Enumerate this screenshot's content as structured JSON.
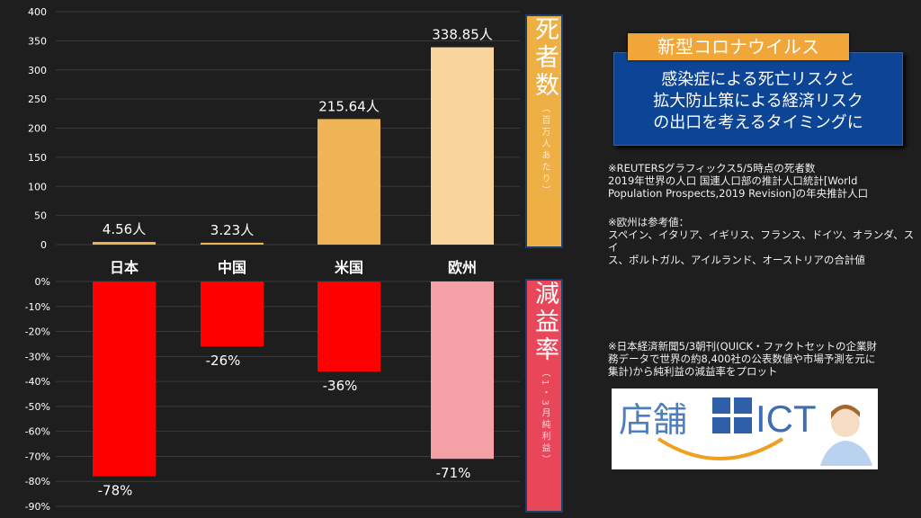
{
  "chart_data": [
    {
      "type": "bar",
      "categories": [
        "日本",
        "中国",
        "米国",
        "欧州"
      ],
      "values": [
        4.56,
        3.23,
        215.64,
        338.85
      ],
      "value_labels": [
        "4.56人",
        "3.23人",
        "215.64人",
        "338.85人"
      ],
      "ylim": [
        0,
        400
      ],
      "yticks": [
        "0",
        "50",
        "100",
        "150",
        "200",
        "250",
        "300",
        "350",
        "400"
      ],
      "colors": [
        "#f0b452",
        "#f0b452",
        "#efb456",
        "#f6d49c"
      ],
      "ylabel_main": "死者数",
      "ylabel_sub": "（百万人あたり）",
      "grid": true
    },
    {
      "type": "bar",
      "categories": [
        "日本",
        "中国",
        "米国",
        "欧州"
      ],
      "values": [
        -78,
        -26,
        -36,
        -71
      ],
      "value_labels": [
        "-78%",
        "-26%",
        "-36%",
        "-71%"
      ],
      "ylim": [
        -90,
        0
      ],
      "yticks": [
        "0%",
        "-10%",
        "-20%",
        "-30%",
        "-40%",
        "-50%",
        "-60%",
        "-70%",
        "-80%",
        "-90%"
      ],
      "colors": [
        "#ff0000",
        "#ff0000",
        "#ff0000",
        "#f4a0a6"
      ],
      "ylabel_main": "減益率",
      "ylabel_sub": "（1・3月純利益）",
      "grid": true
    }
  ],
  "panel": {
    "title": "新型コロナウイルス",
    "subtitle_lines": [
      "感染症による死亡リスクと",
      "拡大防止策による経済リスク",
      "の出口を考えるタイミングに"
    ],
    "note1": "※REUTERSグラフィックス5/5時点の死者数\n   2019年世界の人口 国連人口部の推計人口統計[World\nPopulation Prospects,2019 Revision]の年央推計人口",
    "note2": "※欧州は参考値：\nスペイン、イタリア、イギリス、フランス、ドイツ、オランダ、スイ\nス、ポルトガル、アイルランド、オーストリアの合計値",
    "note3": "※日本経済新聞5/3朝刊(QUICK・ファクトセットの企業財\n務データで世界の約8,400社の公表数値や市場予測を元に\n集計)から純利益の減益率をプロット",
    "logo_text": "店舗ICT"
  }
}
